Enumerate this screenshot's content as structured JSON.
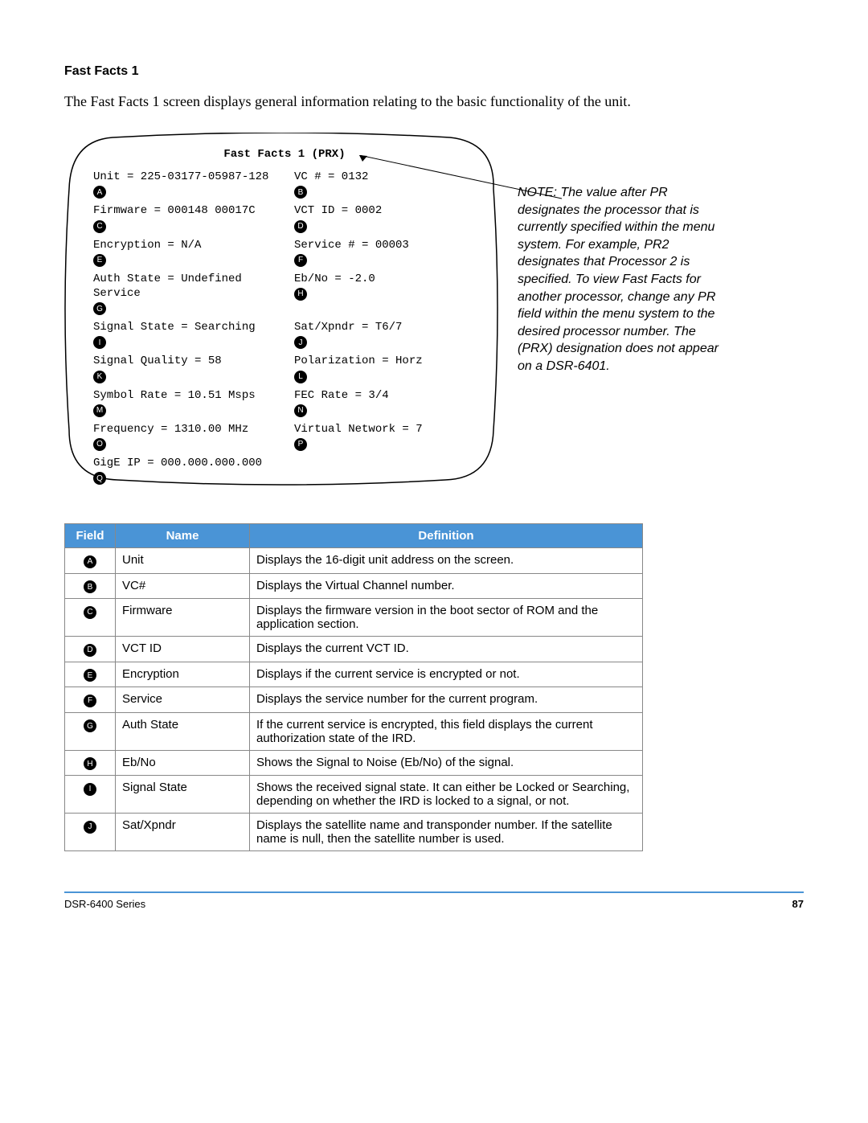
{
  "section_title": "Fast Facts 1",
  "intro": "The Fast Facts 1 screen displays general information relating to the basic functionality of the unit.",
  "screen": {
    "title": "Fast Facts 1 (PRX)",
    "left": [
      {
        "label": "Unit = 225-03177-05987-128",
        "badge": "A"
      },
      {
        "label": "Firmware = 000148 00017C",
        "badge": "C"
      },
      {
        "label": "Encryption = N/A",
        "badge": "E"
      },
      {
        "label": "Auth State = Undefined Service",
        "badge": "G"
      },
      {
        "label": "Signal State = Searching",
        "badge": "I"
      },
      {
        "label": "Signal Quality = 58",
        "badge": "K"
      },
      {
        "label": "Symbol Rate = 10.51 Msps",
        "badge": "M"
      },
      {
        "label": "Frequency = 1310.00 MHz",
        "badge": "O"
      },
      {
        "label": "GigE IP = 000.000.000.000",
        "badge": "Q"
      }
    ],
    "right": [
      {
        "label": "VC # = 0132",
        "badge": "B"
      },
      {
        "label": "VCT ID = 0002",
        "badge": "D"
      },
      {
        "label": "Service # = 00003",
        "badge": "F"
      },
      {
        "label": "Eb/No = -2.0",
        "badge": "H"
      },
      {
        "label": "Sat/Xpndr = T6/7",
        "badge": "J"
      },
      {
        "label": "Polarization = Horz",
        "badge": "L"
      },
      {
        "label": "FEC Rate = 3/4",
        "badge": "N"
      },
      {
        "label": "Virtual Network = 7",
        "badge": "P"
      }
    ]
  },
  "note": "NOTE: The value after PR designates the processor that is currently specified within the menu system. For example, PR2 designates that Processor 2 is specified. To view Fast Facts for another processor, change any PR field within the menu system to the desired processor number. The (PRX) designation does not appear on a DSR-6401.",
  "table": {
    "headers": {
      "field": "Field",
      "name": "Name",
      "definition": "Definition"
    },
    "rows": [
      {
        "badge": "A",
        "name": "Unit",
        "def": "Displays the 16-digit unit address on the screen."
      },
      {
        "badge": "B",
        "name": "VC#",
        "def": "Displays the Virtual Channel number."
      },
      {
        "badge": "C",
        "name": "Firmware",
        "def": "Displays the firmware version in the boot sector of ROM and the application section."
      },
      {
        "badge": "D",
        "name": "VCT ID",
        "def": "Displays the current VCT ID."
      },
      {
        "badge": "E",
        "name": "Encryption",
        "def": "Displays if the current service is encrypted or not."
      },
      {
        "badge": "F",
        "name": "Service",
        "def": "Displays the service number for the current program."
      },
      {
        "badge": "G",
        "name": "Auth State",
        "def": "If the current service is encrypted, this field displays the current authorization state of the IRD."
      },
      {
        "badge": "H",
        "name": "Eb/No",
        "def": "Shows the Signal to Noise (Eb/No) of the signal."
      },
      {
        "badge": "I",
        "name": "Signal State",
        "def": "Shows the received signal state. It can either be Locked or Searching, depending on whether the IRD is locked to a signal, or not."
      },
      {
        "badge": "J",
        "name": "Sat/Xpndr",
        "def": "Displays the satellite name and transponder number. If the satellite name is null, then the satellite number is used."
      }
    ]
  },
  "footer": {
    "left": "DSR-6400 Series",
    "page": "87"
  },
  "colors": {
    "header_bg": "#4a94d6",
    "border": "#888888"
  }
}
